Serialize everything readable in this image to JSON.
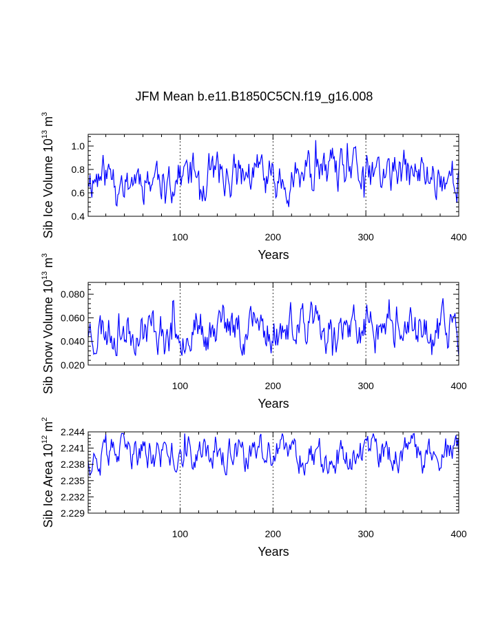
{
  "title": "JFM Mean b.e11.B1850C5CN.f19_g16.008",
  "line_color": "#0000ff",
  "chart_data": [
    {
      "type": "line",
      "name": "sib-ice-volume",
      "ylabel": {
        "pre": "Sib Ice Volume 10",
        "exp": "13",
        "mid": " m",
        "unit_exp": "3"
      },
      "xlabel": "Years",
      "xlim": [
        1,
        400
      ],
      "ylim": [
        0.4,
        1.1
      ],
      "yticks": [
        0.4,
        0.6,
        0.8,
        1.0
      ],
      "ytick_labels": [
        "0.4",
        "0.6",
        "0.8",
        "1.0"
      ],
      "xticks": [
        100,
        200,
        300,
        400
      ],
      "xtick_labels": [
        "100",
        "200",
        "300",
        "400"
      ],
      "series": [
        {
          "name": "JFM mean",
          "mean": 0.75,
          "amp": 0.09,
          "min": 0.43,
          "max": 1.05,
          "seed": 11
        }
      ]
    },
    {
      "type": "line",
      "name": "sib-snow-volume",
      "ylabel": {
        "pre": "Sib Snow Volume 10",
        "exp": "13",
        "mid": " m",
        "unit_exp": "3"
      },
      "xlabel": "Years",
      "xlim": [
        1,
        400
      ],
      "ylim": [
        0.02,
        0.09
      ],
      "yticks": [
        0.02,
        0.04,
        0.06,
        0.08
      ],
      "ytick_labels": [
        "0.020",
        "0.040",
        "0.060",
        "0.080"
      ],
      "xticks": [
        100,
        200,
        300,
        400
      ],
      "xtick_labels": [
        "100",
        "200",
        "300",
        "400"
      ],
      "series": [
        {
          "name": "JFM mean",
          "mean": 0.051,
          "amp": 0.009,
          "min": 0.028,
          "max": 0.085,
          "seed": 23
        }
      ]
    },
    {
      "type": "line",
      "name": "sib-ice-area",
      "ylabel": {
        "pre": "Sib Ice Area 10",
        "exp": "12",
        "mid": " m",
        "unit_exp": "2"
      },
      "xlabel": "Years",
      "xlim": [
        1,
        400
      ],
      "ylim": [
        2.229,
        2.244
      ],
      "yticks": [
        2.229,
        2.232,
        2.235,
        2.238,
        2.241,
        2.244
      ],
      "ytick_labels": [
        "2.229",
        "2.232",
        "2.235",
        "2.238",
        "2.241",
        "2.244"
      ],
      "xticks": [
        100,
        200,
        300,
        400
      ],
      "xtick_labels": [
        "100",
        "200",
        "300",
        "400"
      ],
      "series": [
        {
          "name": "JFM mean",
          "mean": 2.2398,
          "amp": 0.0015,
          "min": 2.2345,
          "max": 2.2437,
          "seed": 37
        }
      ]
    }
  ]
}
